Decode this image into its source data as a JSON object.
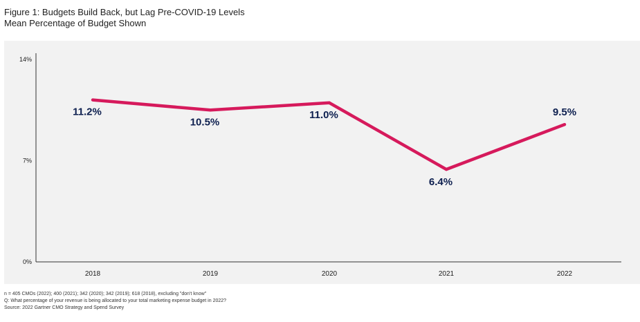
{
  "figure": {
    "title": "Figure 1: Budgets Build Back, but Lag Pre-COVID-19 Levels",
    "subtitle": "Mean Percentage of Budget Shown"
  },
  "chart_data": {
    "type": "line",
    "title": "Figure 1: Budgets Build Back, but Lag Pre-COVID-19 Levels",
    "subtitle": "Mean Percentage of Budget Shown",
    "categories": [
      "2018",
      "2019",
      "2020",
      "2021",
      "2022"
    ],
    "values": [
      11.2,
      10.5,
      11.0,
      6.4,
      9.5
    ],
    "data_labels": [
      "11.2%",
      "10.5%",
      "11.0%",
      "6.4%",
      "9.5%"
    ],
    "y_ticks": [
      {
        "value": 0,
        "label": "0%"
      },
      {
        "value": 7,
        "label": "7%"
      },
      {
        "value": 14,
        "label": "14%"
      }
    ],
    "ylim": [
      0,
      14
    ],
    "xlabel": "",
    "ylabel": "",
    "grid": false,
    "legend": "none",
    "line_color": "#d61a5c",
    "label_color": "#0d1f4f"
  },
  "footnotes": [
    "n = 405 CMOs (2022); 400 (2021); 342 (2020); 342 (2019); 618 (2018), excluding \"don't know\"",
    "Q: What percentage of your revenue is being allocated to your total marketing expense budget in 2022?",
    "Source: 2022 Gartner CMO Strategy and Spend Survey"
  ]
}
